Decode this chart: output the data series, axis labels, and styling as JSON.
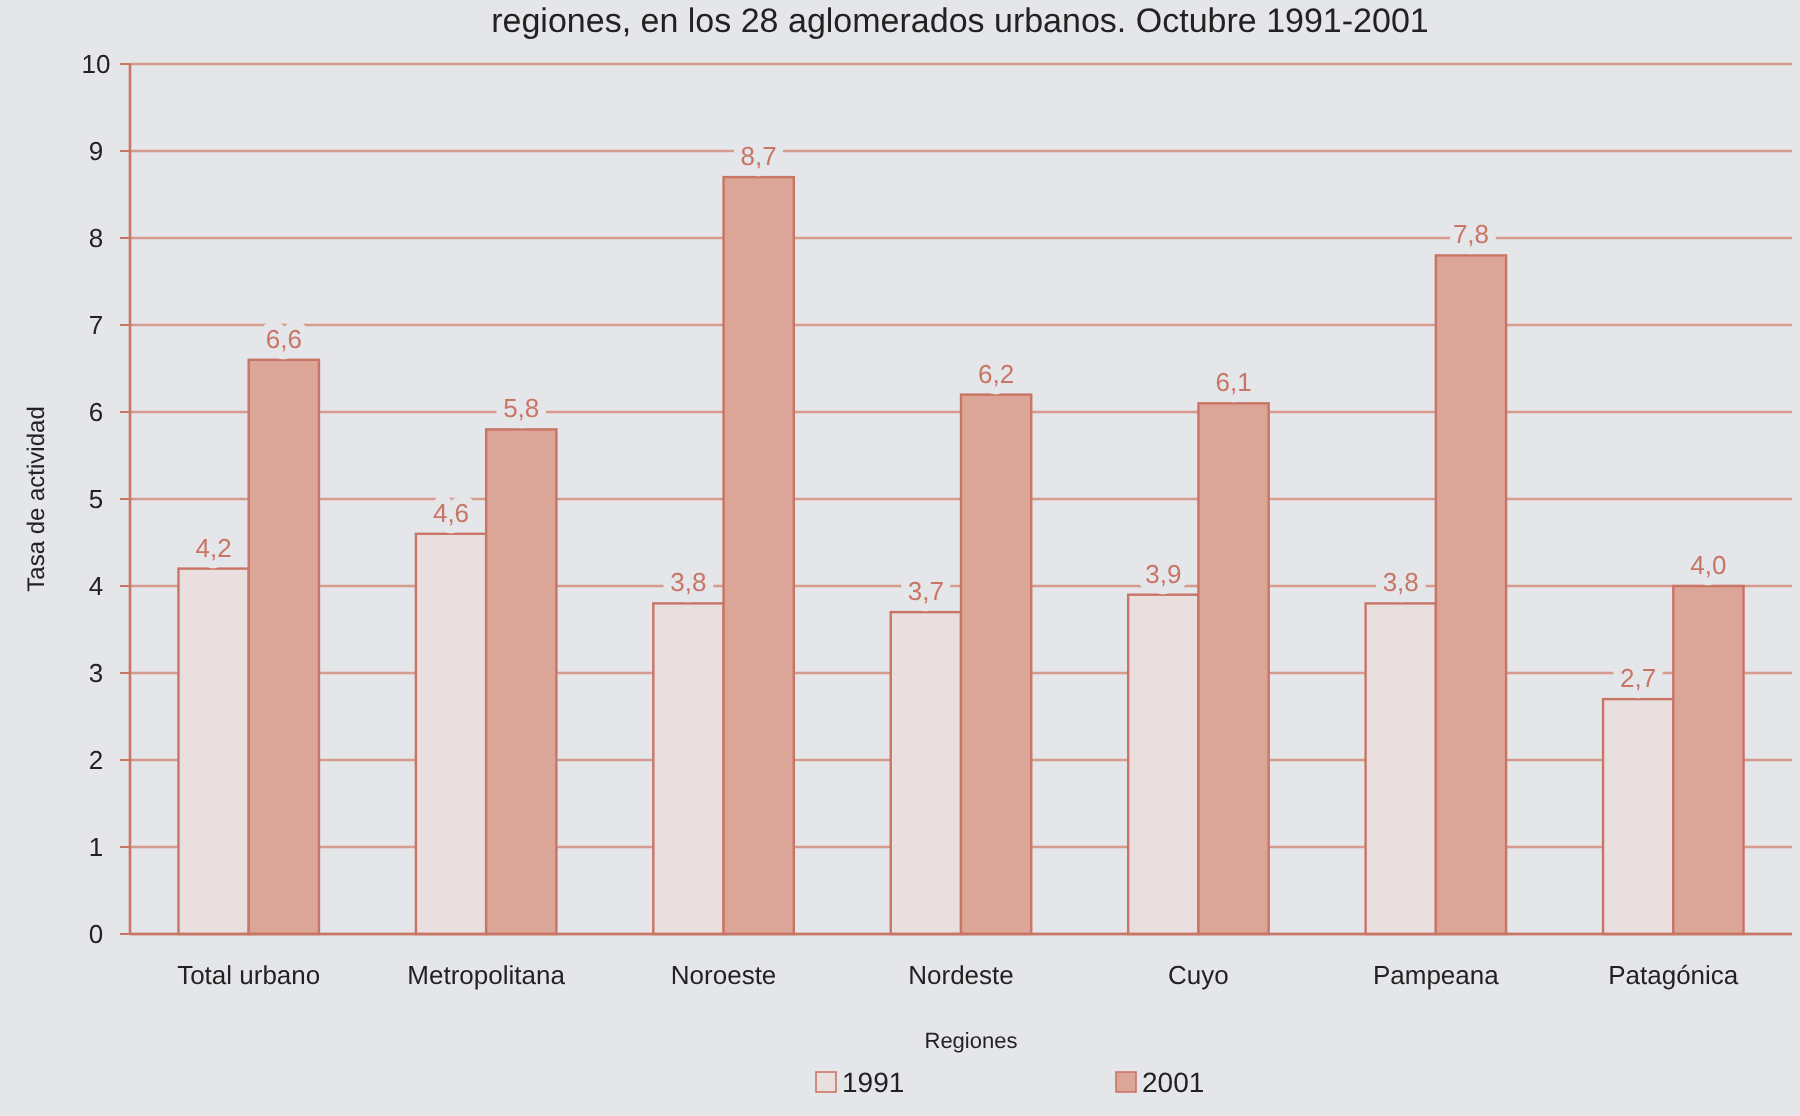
{
  "chart_data": {
    "type": "bar",
    "title": "regiones, en los 28 aglomerados urbanos. Octubre 1991-2001",
    "xlabel": "Regiones",
    "ylabel": "Tasa de actividad",
    "categories": [
      "Total urbano",
      "Metropolitana",
      "Noroeste",
      "Nordeste",
      "Cuyo",
      "Pampeana",
      "Patagónica"
    ],
    "series": [
      {
        "name": "1991",
        "color": "#e9dfdf",
        "values": [
          4.2,
          4.6,
          3.8,
          3.7,
          3.9,
          3.8,
          2.7
        ],
        "value_labels": [
          "4,2",
          "4,6",
          "3,8",
          "3,7",
          "3,9",
          "3,8",
          "2,7"
        ]
      },
      {
        "name": "2001",
        "color": "#dba597",
        "values": [
          6.6,
          5.8,
          8.7,
          6.2,
          6.1,
          7.8,
          4.0
        ],
        "value_labels": [
          "6,6",
          "5,8",
          "8,7",
          "6,2",
          "6,1",
          "7,8",
          "4,0"
        ]
      }
    ],
    "ylim": [
      0,
      10
    ],
    "yticks": [
      0,
      1,
      2,
      3,
      4,
      5,
      6,
      7,
      8,
      9,
      10
    ],
    "grid": "y",
    "legend": "bottom"
  }
}
